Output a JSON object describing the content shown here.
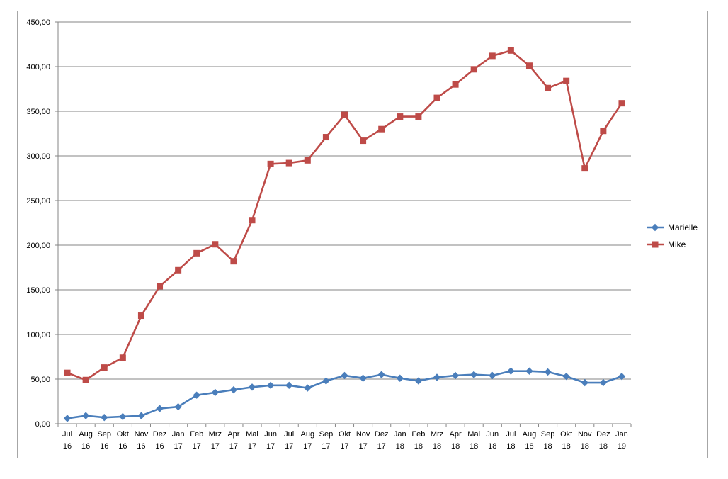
{
  "chart_data": {
    "type": "line",
    "categories": [
      [
        "Jul",
        "16"
      ],
      [
        "Aug",
        "16"
      ],
      [
        "Sep",
        "16"
      ],
      [
        "Okt",
        "16"
      ],
      [
        "Nov",
        "16"
      ],
      [
        "Dez",
        "16"
      ],
      [
        "Jan",
        "17"
      ],
      [
        "Feb",
        "17"
      ],
      [
        "Mrz",
        "17"
      ],
      [
        "Apr",
        "17"
      ],
      [
        "Mai",
        "17"
      ],
      [
        "Jun",
        "17"
      ],
      [
        "Jul",
        "17"
      ],
      [
        "Aug",
        "17"
      ],
      [
        "Sep",
        "17"
      ],
      [
        "Okt",
        "17"
      ],
      [
        "Nov",
        "17"
      ],
      [
        "Dez",
        "17"
      ],
      [
        "Jan",
        "18"
      ],
      [
        "Feb",
        "18"
      ],
      [
        "Mrz",
        "18"
      ],
      [
        "Apr",
        "18"
      ],
      [
        "Mai",
        "18"
      ],
      [
        "Jun",
        "18"
      ],
      [
        "Jul",
        "18"
      ],
      [
        "Aug",
        "18"
      ],
      [
        "Sep",
        "18"
      ],
      [
        "Okt",
        "18"
      ],
      [
        "Nov",
        "18"
      ],
      [
        "Dez",
        "18"
      ],
      [
        "Jan",
        "19"
      ]
    ],
    "ylim": [
      0,
      450
    ],
    "yticks": [
      "0,00",
      "50,00",
      "100,00",
      "150,00",
      "200,00",
      "250,00",
      "300,00",
      "350,00",
      "400,00",
      "450,00"
    ],
    "ytick_values": [
      0,
      50,
      100,
      150,
      200,
      250,
      300,
      350,
      400,
      450
    ],
    "grid": true,
    "legend_position": "right",
    "series": [
      {
        "name": "Marielle",
        "color": "#4a7ebb",
        "marker": "diamond",
        "values": [
          6,
          9,
          7,
          8,
          9,
          17,
          19,
          32,
          35,
          38,
          41,
          43,
          43,
          40,
          48,
          54,
          51,
          55,
          51,
          48,
          52,
          54,
          55,
          54,
          59,
          59,
          58,
          53,
          46,
          46,
          53
        ]
      },
      {
        "name": "Mike",
        "color": "#be4b48",
        "marker": "square",
        "values": [
          57,
          49,
          63,
          74,
          121,
          154,
          172,
          191,
          201,
          182,
          228,
          291,
          292,
          295,
          321,
          346,
          317,
          330,
          344,
          344,
          365,
          380,
          397,
          412,
          418,
          401,
          376,
          384,
          286,
          328,
          359
        ]
      }
    ]
  }
}
